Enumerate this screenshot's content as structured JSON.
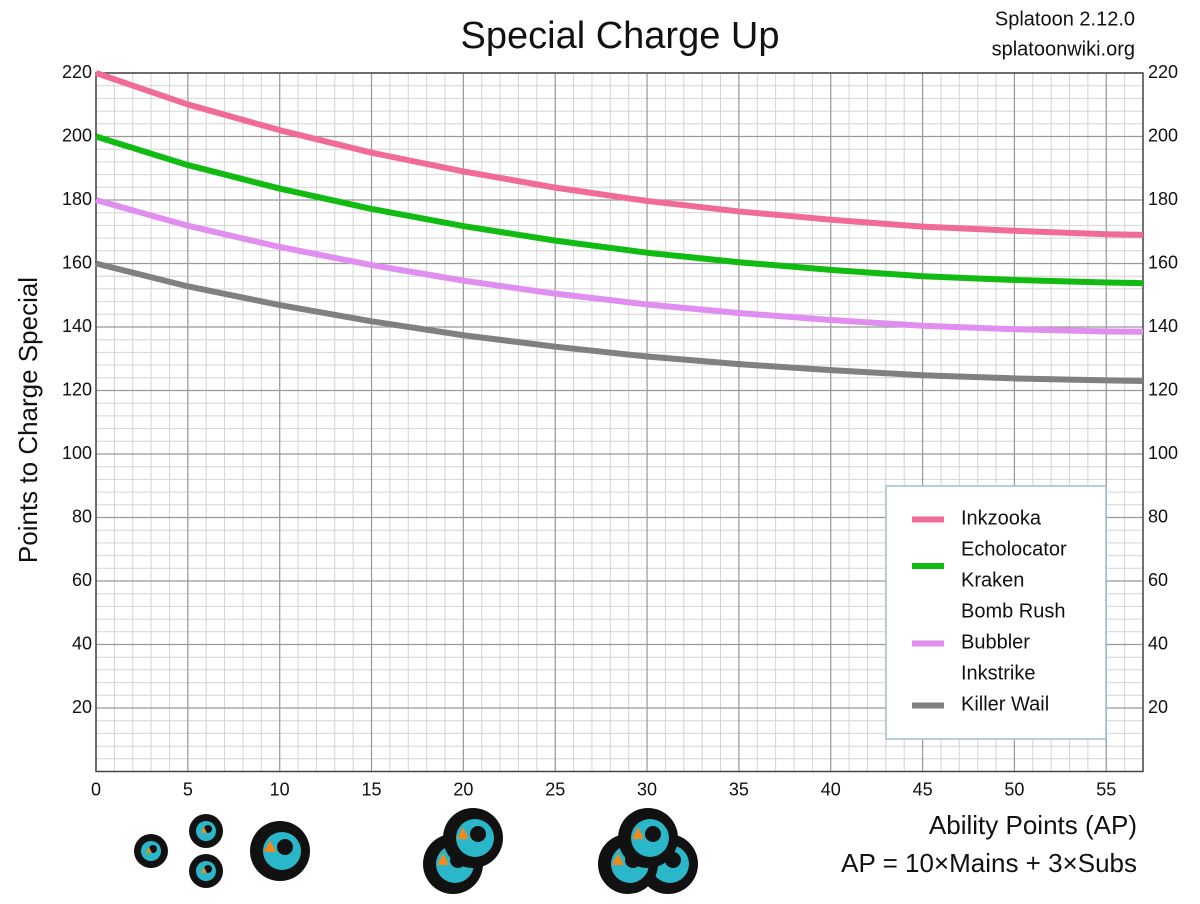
{
  "chart_data": {
    "type": "line",
    "title": "Special Charge Up",
    "annotations": [
      "Splatoon 2.12.0",
      "splatoonwiki.org",
      "AP = 10×Mains + 3×Subs"
    ],
    "xlabel": "Ability Points (AP)",
    "ylabel": "Points to Charge Special",
    "x": [
      0,
      5,
      10,
      15,
      20,
      25,
      30,
      35,
      40,
      45,
      50,
      55,
      57
    ],
    "series": [
      {
        "name": "Inkzooka",
        "color": "#f06b9a",
        "values": [
          220,
          210.1,
          202,
          194.9,
          189,
          183.9,
          179.7,
          176.4,
          173.8,
          171.6,
          170.3,
          169.2,
          169
        ]
      },
      {
        "name": "Echolocator\nKraken",
        "color": "#11bb11",
        "values": [
          200,
          191,
          183.6,
          177.2,
          171.8,
          167.2,
          163.4,
          160.4,
          158,
          156,
          154.8,
          154,
          153.8
        ]
      },
      {
        "name": "Bomb Rush\nBubbler\nInkstrike",
        "color": "#e08ef0",
        "values": [
          180,
          171.9,
          165.2,
          159.5,
          154.6,
          150.5,
          147.1,
          144.4,
          142.2,
          140.4,
          139.3,
          138.6,
          138.5
        ]
      },
      {
        "name": "Killer Wail",
        "color": "#808080",
        "values": [
          160,
          152.8,
          146.9,
          141.8,
          137.4,
          133.8,
          130.7,
          128.3,
          126.4,
          124.8,
          123.8,
          123.2,
          123
        ]
      }
    ],
    "xlim": [
      0,
      57
    ],
    "ylim": [
      0,
      220
    ],
    "xticks": [
      0,
      5,
      10,
      15,
      20,
      25,
      30,
      35,
      40,
      45,
      50,
      55
    ],
    "yticks": [
      20,
      40,
      60,
      80,
      100,
      120,
      140,
      160,
      180,
      200,
      220
    ],
    "x_minor_step": 1,
    "y_minor_step": 4,
    "grid": true,
    "legend": "lower right"
  }
}
